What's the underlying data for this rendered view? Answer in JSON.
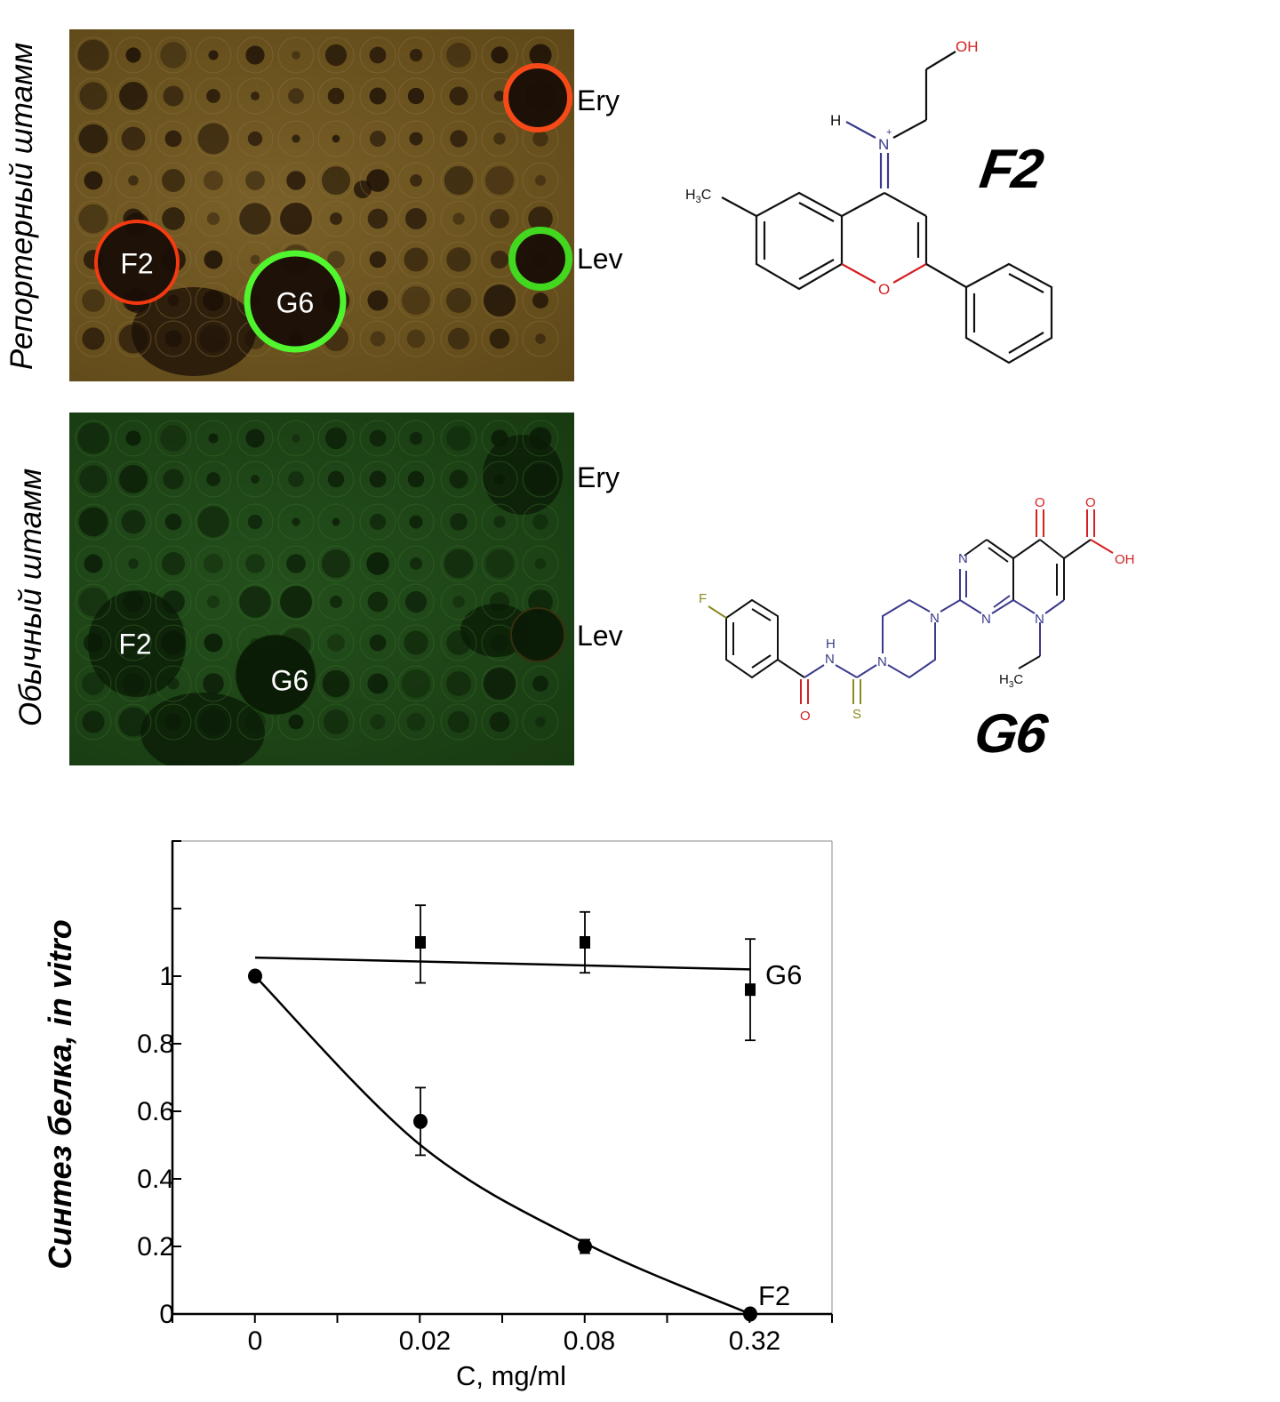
{
  "panels": {
    "reporter_strain_label": "Репортерный штамм",
    "ordinary_strain_label": "Обычный штамм",
    "top_plate": {
      "labels": {
        "f2": "F2",
        "g6": "G6"
      },
      "side": {
        "ery": "Ery",
        "lev": "Lev"
      },
      "background_color": "#6a5424"
    },
    "bottom_plate": {
      "labels": {
        "f2": "F2",
        "g6": "G6"
      },
      "side": {
        "ery": "Ery",
        "lev": "Lev"
      },
      "background_color": "#20461a"
    }
  },
  "compounds": {
    "f2": {
      "name": "F2",
      "atoms": {
        "oh": "OH",
        "h": "H",
        "n": "N",
        "plus": "+",
        "h3c_h": "H",
        "h3c_sub": "3",
        "h3c_c": "C",
        "o": "O"
      }
    },
    "g6": {
      "name": "G6",
      "atoms": {
        "f": "F",
        "o1": "O",
        "nh_h": "H",
        "nh_n": "N",
        "s": "S",
        "n_pip1": "N",
        "n_pip2": "N",
        "n_pyr1": "N",
        "n_pyr2": "N",
        "n8": "N",
        "o_keto": "O",
        "o_acid": "O",
        "oh": "OH",
        "h3c_h": "H",
        "h3c_sub": "3",
        "h3c_c": "C"
      }
    }
  },
  "colors": {
    "nitrogen": "#3a3a8c",
    "oxygen": "#d42020",
    "sulfur": "#8a8a20",
    "fluorine": "#8a8a20",
    "red_halo": "#ff3a10",
    "green_halo": "#40ff30"
  },
  "chart_data": {
    "type": "scatter",
    "xlabel": "C, mg/ml",
    "ylabel": "Синтез белка, in vitro",
    "x_tick_labels": [
      "0",
      "0.02",
      "0.08",
      "0.32"
    ],
    "y_tick_labels": [
      "0",
      "0.2",
      "0.4",
      "0.6",
      "0.8",
      "1"
    ],
    "y_ticks": [
      0,
      0.2,
      0.4,
      0.6,
      0.8,
      1.0,
      1.2,
      1.4
    ],
    "ylim": [
      0,
      1.4
    ],
    "x": [
      0,
      0.02,
      0.08,
      0.32
    ],
    "series": [
      {
        "name": "G6",
        "marker": "square",
        "x": [
          0.02,
          0.08,
          0.32
        ],
        "values": [
          1.1,
          1.1,
          0.96
        ],
        "err_low": [
          0.98,
          1.01,
          0.81
        ],
        "err_high": [
          1.21,
          1.19,
          1.11
        ],
        "fit": {
          "x": [
            0,
            0.32
          ],
          "values": [
            1.055,
            1.02
          ]
        }
      },
      {
        "name": "F2",
        "marker": "circle",
        "x": [
          0,
          0.02,
          0.08,
          0.32
        ],
        "values": [
          1.0,
          0.57,
          0.2,
          0.0
        ],
        "err_low": [
          null,
          0.47,
          0.18,
          null
        ],
        "err_high": [
          null,
          0.67,
          0.22,
          null
        ],
        "fit": {
          "x": [
            0,
            0.02,
            0.08,
            0.32
          ],
          "values": [
            1.0,
            0.5,
            0.21,
            0.0
          ]
        }
      }
    ],
    "grid": false
  }
}
